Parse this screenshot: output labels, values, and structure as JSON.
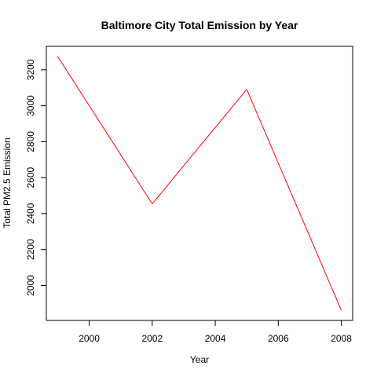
{
  "chart_data": {
    "type": "line",
    "title": "Baltimore City Total Emission by Year",
    "xlabel": "Year",
    "ylabel": "Total PM2.5 Emission",
    "x": [
      1999,
      2002,
      2005,
      2008
    ],
    "series": [
      {
        "values": [
          3274,
          2454,
          3091,
          1862
        ],
        "color": "#ff0000"
      }
    ],
    "xlim": [
      1999,
      2008
    ],
    "ylim": [
      1862,
      3274
    ],
    "xticks": [
      2000,
      2002,
      2004,
      2006,
      2008
    ],
    "yticks": [
      2000,
      2200,
      2400,
      2600,
      2800,
      3000,
      3200
    ],
    "grid": false,
    "legend": "none"
  }
}
